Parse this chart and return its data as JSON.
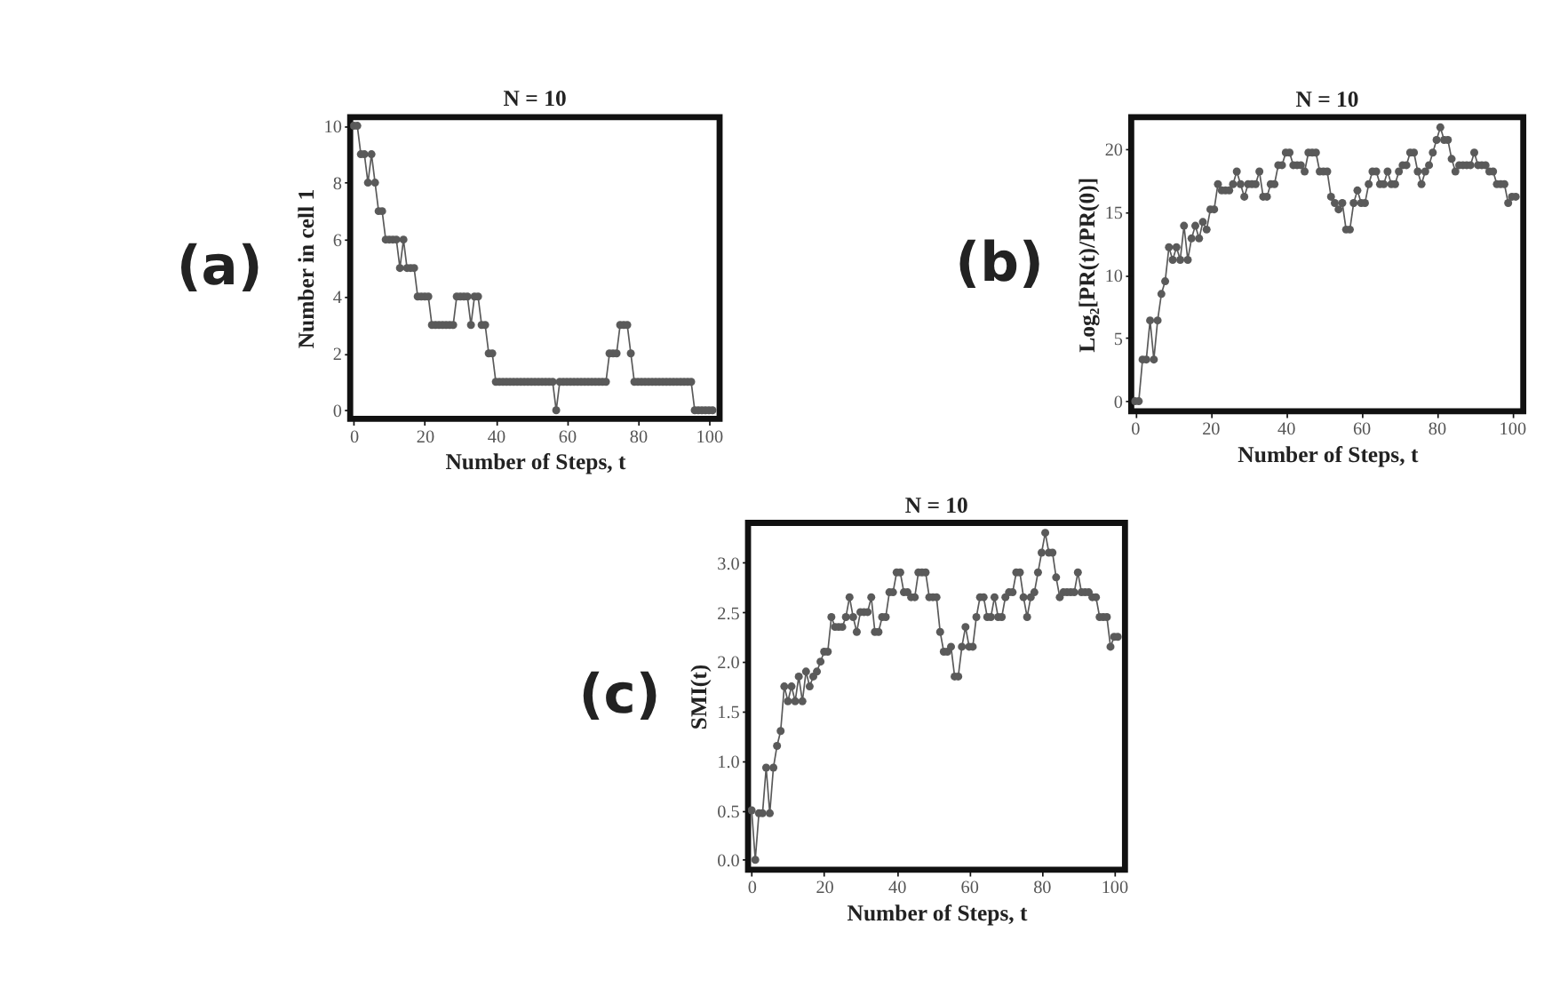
{
  "chart_data": [
    {
      "type": "line",
      "title": "N = 10",
      "xlabel": "Number of Steps,  t",
      "ylabel": "Number in  cell 1",
      "annotations": [
        "(a)"
      ],
      "marker": "circle",
      "line_style": "solid",
      "grid": false,
      "xlim": [
        -1,
        103
      ],
      "xticks": [
        0,
        20,
        40,
        60,
        80,
        100
      ],
      "ylim": [
        -0.3,
        10.3
      ],
      "yticks": [
        0,
        2,
        4,
        6,
        8,
        10
      ],
      "x": [
        0,
        1,
        2,
        3,
        4,
        5,
        6,
        7,
        8,
        9,
        10,
        11,
        12,
        13,
        14,
        15,
        16,
        17,
        18,
        19,
        20,
        21,
        22,
        23,
        24,
        25,
        26,
        27,
        28,
        29,
        30,
        31,
        32,
        33,
        34,
        35,
        36,
        37,
        38,
        39,
        40,
        41,
        42,
        43,
        44,
        45,
        46,
        47,
        48,
        49,
        50,
        51,
        52,
        53,
        54,
        55,
        56,
        57,
        58,
        59,
        60,
        61,
        62,
        63,
        64,
        65,
        66,
        67,
        68,
        69,
        70,
        71,
        72,
        73,
        74,
        75,
        76,
        77,
        78,
        79,
        80,
        81,
        82,
        83,
        84,
        85,
        86,
        87,
        88,
        89,
        90,
        91,
        92,
        93,
        94,
        95,
        96,
        97,
        98,
        99,
        100,
        101
      ],
      "series": [
        {
          "color": "#5a5a5a",
          "values": [
            10,
            10,
            9,
            9,
            8,
            9,
            8,
            7,
            7,
            6,
            6,
            6,
            6,
            5,
            6,
            5,
            5,
            5,
            4,
            4,
            4,
            4,
            3,
            3,
            3,
            3,
            3,
            3,
            3,
            4,
            4,
            4,
            4,
            3,
            4,
            4,
            3,
            3,
            2,
            2,
            1,
            1,
            1,
            1,
            1,
            1,
            1,
            1,
            1,
            1,
            1,
            1,
            1,
            1,
            1,
            1,
            1,
            0,
            1,
            1,
            1,
            1,
            1,
            1,
            1,
            1,
            1,
            1,
            1,
            1,
            1,
            1,
            2,
            2,
            2,
            3,
            3,
            3,
            2,
            1,
            1,
            1,
            1,
            1,
            1,
            1,
            1,
            1,
            1,
            1,
            1,
            1,
            1,
            1,
            1,
            1,
            0,
            0,
            0,
            0,
            0,
            0
          ]
        }
      ]
    },
    {
      "type": "line",
      "title": "N = 10",
      "xlabel": "Number of Steps,  t",
      "ylabel": "Log₂[PR(t)/PR(0)]",
      "annotations": [
        "(b)"
      ],
      "marker": "circle",
      "line_style": "solid",
      "grid": false,
      "xlim": [
        -1,
        103
      ],
      "xticks": [
        0,
        20,
        40,
        60,
        80,
        100
      ],
      "ylim": [
        -0.8,
        22.5
      ],
      "yticks": [
        0,
        5,
        10,
        15,
        20
      ],
      "x": [
        0,
        1,
        2,
        3,
        4,
        5,
        6,
        7,
        8,
        9,
        10,
        11,
        12,
        13,
        14,
        15,
        16,
        17,
        18,
        19,
        20,
        21,
        22,
        23,
        24,
        25,
        26,
        27,
        28,
        29,
        30,
        31,
        32,
        33,
        34,
        35,
        36,
        37,
        38,
        39,
        40,
        41,
        42,
        43,
        44,
        45,
        46,
        47,
        48,
        49,
        50,
        51,
        52,
        53,
        54,
        55,
        56,
        57,
        58,
        59,
        60,
        61,
        62,
        63,
        64,
        65,
        66,
        67,
        68,
        69,
        70,
        71,
        72,
        73,
        74,
        75,
        76,
        77,
        78,
        79,
        80,
        81,
        82,
        83,
        84,
        85,
        86,
        87,
        88,
        89,
        90,
        91,
        92,
        93,
        94,
        95,
        96,
        97,
        98,
        99,
        100,
        101
      ],
      "series": [
        {
          "color": "#5a5a5a",
          "values": [
            0,
            0,
            3.3,
            3.3,
            6.4,
            3.3,
            6.4,
            8.5,
            9.5,
            12.2,
            11.2,
            12.2,
            11.2,
            13.9,
            11.2,
            12.9,
            13.9,
            12.9,
            14.2,
            13.6,
            15.2,
            15.2,
            17.2,
            16.7,
            16.7,
            16.7,
            17.2,
            18.2,
            17.2,
            16.2,
            17.2,
            17.2,
            17.2,
            18.2,
            16.2,
            16.2,
            17.2,
            17.2,
            18.7,
            18.7,
            19.7,
            19.7,
            18.7,
            18.7,
            18.7,
            18.2,
            19.7,
            19.7,
            19.7,
            18.2,
            18.2,
            18.2,
            16.2,
            15.7,
            15.2,
            15.7,
            13.6,
            13.6,
            15.7,
            16.7,
            15.7,
            15.7,
            17.2,
            18.2,
            18.2,
            17.2,
            17.2,
            18.2,
            17.2,
            17.2,
            18.2,
            18.7,
            18.7,
            19.7,
            19.7,
            18.2,
            17.2,
            18.2,
            18.7,
            19.7,
            20.7,
            21.7,
            20.7,
            20.7,
            19.2,
            18.2,
            18.7,
            18.7,
            18.7,
            18.7,
            19.7,
            18.7,
            18.7,
            18.7,
            18.2,
            18.2,
            17.2,
            17.2,
            17.2,
            15.7,
            16.2,
            16.2
          ]
        }
      ]
    },
    {
      "type": "line",
      "title": "N = 10",
      "xlabel": "Number of Steps,  t",
      "ylabel": "SMI(t)",
      "annotations": [
        "(c)"
      ],
      "marker": "circle",
      "line_style": "solid",
      "grid": false,
      "xlim": [
        -1,
        103
      ],
      "xticks": [
        0,
        20,
        40,
        60,
        80,
        100
      ],
      "ylim": [
        -0.1,
        3.4
      ],
      "yticks": [
        {
          "value": 0,
          "label": "0.0"
        },
        {
          "value": 0.5,
          "label": "0.5"
        },
        {
          "value": 1,
          "label": "1.0"
        },
        {
          "value": 1.5,
          "label": "1.5"
        },
        {
          "value": 2,
          "label": "2.0"
        },
        {
          "value": 2.5,
          "label": "2.5"
        },
        {
          "value": 3,
          "label": "3.0"
        }
      ],
      "x": [
        0,
        1,
        2,
        3,
        4,
        5,
        6,
        7,
        8,
        9,
        10,
        11,
        12,
        13,
        14,
        15,
        16,
        17,
        18,
        19,
        20,
        21,
        22,
        23,
        24,
        25,
        26,
        27,
        28,
        29,
        30,
        31,
        32,
        33,
        34,
        35,
        36,
        37,
        38,
        39,
        40,
        41,
        42,
        43,
        44,
        45,
        46,
        47,
        48,
        49,
        50,
        51,
        52,
        53,
        54,
        55,
        56,
        57,
        58,
        59,
        60,
        61,
        62,
        63,
        64,
        65,
        66,
        67,
        68,
        69,
        70,
        71,
        72,
        73,
        74,
        75,
        76,
        77,
        78,
        79,
        80,
        81,
        82,
        83,
        84,
        85,
        86,
        87,
        88,
        89,
        90,
        91,
        92,
        93,
        94,
        95,
        96,
        97,
        98,
        99,
        100,
        101
      ],
      "series": [
        {
          "color": "#5a5a5a",
          "values": [
            0.5,
            0,
            0.47,
            0.47,
            0.93,
            0.47,
            0.93,
            1.15,
            1.3,
            1.75,
            1.6,
            1.75,
            1.6,
            1.85,
            1.6,
            1.9,
            1.75,
            1.85,
            1.9,
            2.0,
            2.1,
            2.1,
            2.45,
            2.35,
            2.35,
            2.35,
            2.45,
            2.65,
            2.45,
            2.3,
            2.5,
            2.5,
            2.5,
            2.65,
            2.3,
            2.3,
            2.45,
            2.45,
            2.7,
            2.7,
            2.9,
            2.9,
            2.7,
            2.7,
            2.65,
            2.65,
            2.9,
            2.9,
            2.9,
            2.65,
            2.65,
            2.65,
            2.3,
            2.1,
            2.1,
            2.15,
            1.85,
            1.85,
            2.15,
            2.35,
            2.15,
            2.15,
            2.45,
            2.65,
            2.65,
            2.45,
            2.45,
            2.65,
            2.45,
            2.45,
            2.65,
            2.7,
            2.7,
            2.9,
            2.9,
            2.65,
            2.45,
            2.65,
            2.7,
            2.9,
            3.1,
            3.3,
            3.1,
            3.1,
            2.85,
            2.65,
            2.7,
            2.7,
            2.7,
            2.7,
            2.9,
            2.7,
            2.7,
            2.7,
            2.65,
            2.65,
            2.45,
            2.45,
            2.45,
            2.15,
            2.25,
            2.25
          ]
        }
      ]
    }
  ]
}
